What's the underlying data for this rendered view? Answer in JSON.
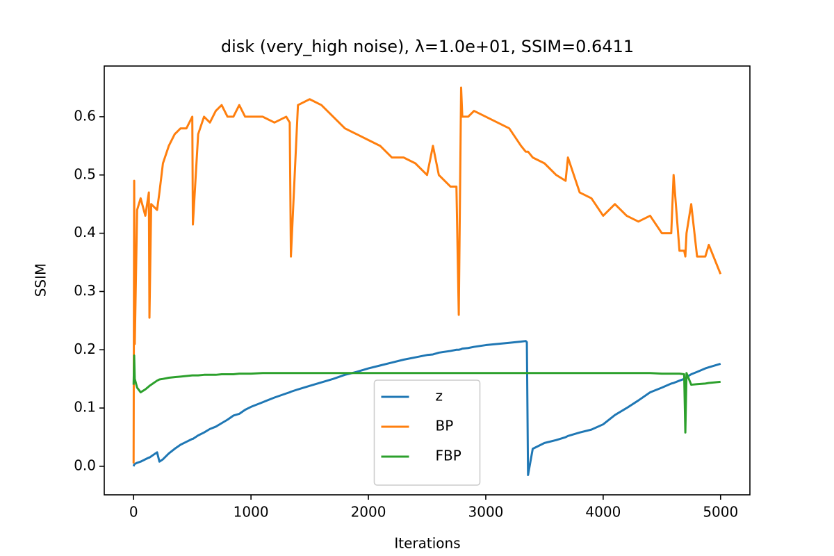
{
  "chart_data": {
    "type": "line",
    "title": "disk (very_high noise), λ=1.0e+01, SSIM=0.6411",
    "x_label": "Iterations",
    "y_label": "SSIM",
    "x": [
      0,
      5,
      10,
      30,
      60,
      100,
      130,
      135,
      150,
      200,
      220,
      250,
      300,
      350,
      400,
      450,
      500,
      505,
      550,
      600,
      650,
      700,
      750,
      800,
      850,
      900,
      950,
      1000,
      1100,
      1200,
      1300,
      1330,
      1340,
      1400,
      1500,
      1600,
      1700,
      1800,
      1900,
      2000,
      2100,
      2200,
      2300,
      2400,
      2500,
      2550,
      2600,
      2700,
      2750,
      2770,
      2790,
      2800,
      2850,
      2900,
      3000,
      3100,
      3200,
      3300,
      3340,
      3350,
      3360,
      3400,
      3500,
      3600,
      3680,
      3700,
      3800,
      3900,
      4000,
      4100,
      4200,
      4300,
      4400,
      4500,
      4580,
      4600,
      4650,
      4690,
      4700,
      4710,
      4750,
      4800,
      4870,
      4900,
      5000
    ],
    "series": [
      {
        "name": "z",
        "color": "#1f77b4",
        "values": [
          0.0,
          0.003,
          0.004,
          0.006,
          0.008,
          0.012,
          0.015,
          0.015,
          0.017,
          0.024,
          0.008,
          0.012,
          0.022,
          0.03,
          0.037,
          0.042,
          0.047,
          0.047,
          0.053,
          0.058,
          0.064,
          0.068,
          0.074,
          0.08,
          0.087,
          0.09,
          0.097,
          0.102,
          0.11,
          0.118,
          0.125,
          0.127,
          0.128,
          0.132,
          0.138,
          0.144,
          0.15,
          0.157,
          0.162,
          0.168,
          0.173,
          0.178,
          0.183,
          0.187,
          0.191,
          0.192,
          0.195,
          0.198,
          0.2,
          0.2,
          0.201,
          0.202,
          0.203,
          0.205,
          0.208,
          0.21,
          0.212,
          0.214,
          0.215,
          0.213,
          -0.015,
          0.03,
          0.04,
          0.045,
          0.05,
          0.052,
          0.058,
          0.063,
          0.072,
          0.088,
          0.1,
          0.113,
          0.127,
          0.135,
          0.142,
          0.143,
          0.147,
          0.15,
          0.152,
          0.153,
          0.158,
          0.162,
          0.168,
          0.17,
          0.176
        ]
      },
      {
        "name": "BP",
        "color": "#ff7f0e",
        "values": [
          0.005,
          0.49,
          0.21,
          0.44,
          0.46,
          0.43,
          0.47,
          0.255,
          0.45,
          0.44,
          0.47,
          0.52,
          0.55,
          0.57,
          0.58,
          0.58,
          0.6,
          0.415,
          0.57,
          0.6,
          0.59,
          0.61,
          0.62,
          0.6,
          0.6,
          0.62,
          0.6,
          0.6,
          0.6,
          0.59,
          0.6,
          0.59,
          0.36,
          0.62,
          0.63,
          0.62,
          0.6,
          0.58,
          0.57,
          0.56,
          0.55,
          0.53,
          0.53,
          0.52,
          0.5,
          0.55,
          0.5,
          0.48,
          0.48,
          0.26,
          0.65,
          0.6,
          0.6,
          0.61,
          0.6,
          0.59,
          0.58,
          0.55,
          0.54,
          0.54,
          0.54,
          0.53,
          0.52,
          0.5,
          0.49,
          0.53,
          0.47,
          0.46,
          0.43,
          0.45,
          0.43,
          0.42,
          0.43,
          0.4,
          0.4,
          0.5,
          0.37,
          0.37,
          0.36,
          0.4,
          0.45,
          0.36,
          0.36,
          0.38,
          0.33
        ]
      },
      {
        "name": "FBP",
        "color": "#2ca02c",
        "values": [
          0.14,
          0.19,
          0.15,
          0.135,
          0.127,
          0.132,
          0.137,
          0.138,
          0.14,
          0.147,
          0.149,
          0.15,
          0.152,
          0.153,
          0.154,
          0.155,
          0.156,
          0.156,
          0.156,
          0.157,
          0.157,
          0.157,
          0.158,
          0.158,
          0.158,
          0.159,
          0.159,
          0.159,
          0.16,
          0.16,
          0.16,
          0.16,
          0.16,
          0.16,
          0.16,
          0.16,
          0.16,
          0.16,
          0.16,
          0.16,
          0.16,
          0.16,
          0.16,
          0.16,
          0.16,
          0.16,
          0.16,
          0.16,
          0.16,
          0.16,
          0.16,
          0.16,
          0.16,
          0.16,
          0.16,
          0.16,
          0.16,
          0.16,
          0.16,
          0.16,
          0.16,
          0.16,
          0.16,
          0.16,
          0.16,
          0.16,
          0.16,
          0.16,
          0.16,
          0.16,
          0.16,
          0.16,
          0.16,
          0.159,
          0.159,
          0.159,
          0.159,
          0.158,
          0.058,
          0.16,
          0.14,
          0.141,
          0.142,
          0.143,
          0.145
        ]
      }
    ],
    "xlim": [
      -250,
      5250
    ],
    "ylim": [
      -0.049,
      0.687
    ],
    "xticks": [
      0,
      1000,
      2000,
      3000,
      4000,
      5000
    ],
    "yticks": [
      {
        "value": 0,
        "label": "0.0"
      },
      0.1,
      0.2,
      0.3,
      0.4,
      0.5,
      0.6
    ],
    "legend": "lower center"
  }
}
